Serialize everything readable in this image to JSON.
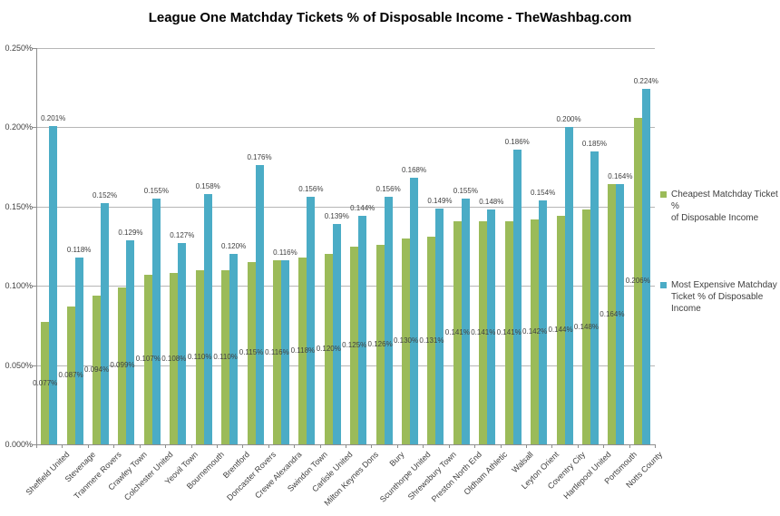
{
  "chart_data": {
    "type": "bar",
    "title": "League One Matchday Tickets % of Disposable Income - TheWashbag.com",
    "categories": [
      "Sheffield United",
      "Stevenage",
      "Tranmere Rovers",
      "Crawley Town",
      "Colchester United",
      "Yeovil Town",
      "Bournemouth",
      "Brentford",
      "Doncaster Rovers",
      "Crewe Alexandra",
      "Swindon Town",
      "Carlisle United",
      "Milton Keynes Dons",
      "Bury",
      "Scunthorpe United",
      "Shrewsbury Town",
      "Preston North End",
      "Oldham Athletic",
      "Walsall",
      "Leyton Orient",
      "Coventry City",
      "Hartlepool United",
      "Portsmouth",
      "Notts County"
    ],
    "series": [
      {
        "name": "Cheapest Matchday Ticket % of Disposable Income",
        "legend_lines": [
          "Cheapest Matchday Ticket %",
          "of Disposable Income"
        ],
        "color": "#9BBB59",
        "values": [
          0.077,
          0.087,
          0.094,
          0.099,
          0.107,
          0.108,
          0.11,
          0.11,
          0.115,
          0.116,
          0.118,
          0.12,
          0.125,
          0.126,
          0.13,
          0.131,
          0.141,
          0.141,
          0.141,
          0.142,
          0.144,
          0.148,
          0.164,
          0.206
        ],
        "labels": [
          "0.077%",
          "0.087%",
          "0.094%",
          "0.099%",
          "0.107%",
          "0.108%",
          "0.110%",
          "0.110%",
          "0.115%",
          "0.116%",
          "0.118%",
          "0.120%",
          "0.125%",
          "0.126%",
          "0.130%",
          "0.131%",
          "0.141%",
          "0.141%",
          "0.141%",
          "0.142%",
          "0.144%",
          "0.148%",
          "0.164%",
          "0.206%"
        ],
        "label_position": "center"
      },
      {
        "name": "Most Expensive Matchday Ticket % of Disposable Income",
        "legend_lines": [
          "Most Expensive Matchday",
          "Ticket % of Disposable Income"
        ],
        "color": "#4BACC6",
        "values": [
          0.201,
          0.118,
          0.152,
          0.129,
          0.155,
          0.127,
          0.158,
          0.12,
          0.176,
          0.116,
          0.156,
          0.139,
          0.144,
          0.156,
          0.168,
          0.149,
          0.155,
          0.148,
          0.186,
          0.154,
          0.2,
          0.185,
          0.164,
          0.224
        ],
        "labels": [
          "0.201%",
          "0.118%",
          "0.152%",
          "0.129%",
          "0.155%",
          "0.127%",
          "0.158%",
          "0.120%",
          "0.176%",
          "0.116%",
          "0.156%",
          "0.139%",
          "0.144%",
          "0.156%",
          "0.168%",
          "0.149%",
          "0.155%",
          "0.148%",
          "0.186%",
          "0.154%",
          "0.200%",
          "0.185%",
          "0.164%",
          "0.224%"
        ],
        "label_position": "outside-end"
      }
    ],
    "y_axis": {
      "ticks": [
        "0.000%",
        "0.050%",
        "0.100%",
        "0.150%",
        "0.200%",
        "0.250%"
      ],
      "min": 0,
      "max": 0.25
    },
    "grid": true,
    "legend_position": "right"
  }
}
